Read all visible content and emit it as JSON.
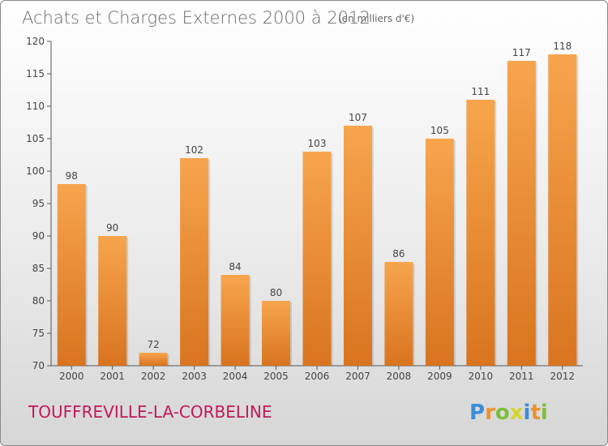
{
  "chart_data": {
    "type": "bar",
    "title": "Achats et Charges Externes 2000 à 2012",
    "subtitle": "(en milliers d'€)",
    "categories": [
      "2000",
      "2001",
      "2002",
      "2003",
      "2004",
      "2005",
      "2006",
      "2007",
      "2008",
      "2009",
      "2010",
      "2011",
      "2012"
    ],
    "values": [
      98,
      90,
      72,
      102,
      84,
      80,
      103,
      107,
      86,
      105,
      111,
      117,
      118
    ],
    "ylim": [
      70,
      120
    ],
    "yticks": [
      70,
      75,
      80,
      85,
      90,
      95,
      100,
      105,
      110,
      115,
      120
    ],
    "xlabel": "",
    "ylabel": "",
    "grid": false,
    "bar_color_top": "#f7a54d",
    "bar_color_bottom": "#d9741f"
  },
  "place": "TOUFFREVILLE-LA-CORBELINE",
  "logo": {
    "letters": [
      "P",
      "r",
      "o",
      "x",
      "i",
      "t",
      "i"
    ],
    "colors": [
      "#3b8ed8",
      "#e8932f",
      "#7cbf3a",
      "#d3d62b",
      "#3b8ed8",
      "#e8932f",
      "#7cbf3a"
    ]
  }
}
